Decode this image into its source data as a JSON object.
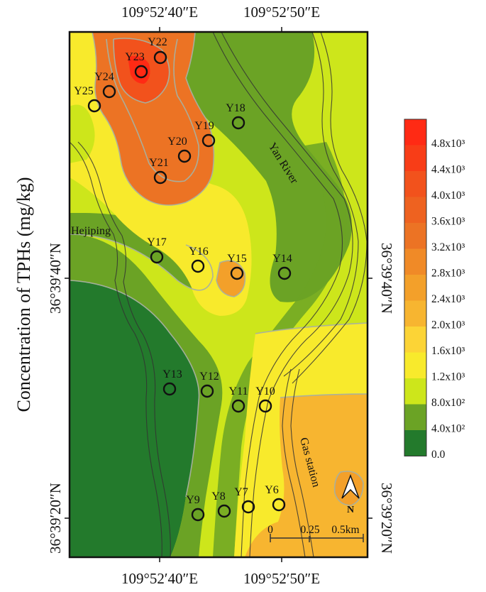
{
  "axis": {
    "y_label": "Concentration of TPHs (mg/kg)",
    "top_lon": [
      "109°52′40″E",
      "109°52′50″E"
    ],
    "bottom_lon": [
      "109°52′40″E",
      "109°52′50″E"
    ],
    "left_lat": [
      "36°39′40″N",
      "36°39′20″N"
    ],
    "right_lat": [
      "36°39′40″N",
      "36°39′20″N"
    ]
  },
  "places": {
    "river": "Yan River",
    "village": "Hejiping",
    "gas": "Gas station"
  },
  "compass": "N",
  "scale": [
    "0",
    "0.25",
    "0.5km"
  ],
  "legend": [
    {
      "label": "4.8x10³",
      "color": "#ff2a14"
    },
    {
      "label": "4.4x10³",
      "color": "#f83d17"
    },
    {
      "label": "4.0x10³",
      "color": "#f2521c"
    },
    {
      "label": "3.6x10³",
      "color": "#ee6220"
    },
    {
      "label": "3.2x10³",
      "color": "#ec7324"
    },
    {
      "label": "2.8x10³",
      "color": "#f08a27"
    },
    {
      "label": "2.4x10³",
      "color": "#f3a02a"
    },
    {
      "label": "2.0x10³",
      "color": "#f7b530"
    },
    {
      "label": "1.6x10³",
      "color": "#fcd436"
    },
    {
      "label": "1.2x10³",
      "color": "#f8ea2c"
    },
    {
      "label": "8.0x10²",
      "color": "#cde61b"
    },
    {
      "label": "4.0x10²",
      "color": "#6ba325"
    },
    {
      "label": "0.0",
      "color": "#237a2c"
    }
  ],
  "sites": [
    "Y22",
    "Y23",
    "Y24",
    "Y25",
    "Y18",
    "Y19",
    "Y20",
    "Y21",
    "Y17",
    "Y16",
    "Y15",
    "Y14",
    "Y13",
    "Y12",
    "Y11",
    "Y10",
    "Y9",
    "Y8",
    "Y7",
    "Y6"
  ]
}
